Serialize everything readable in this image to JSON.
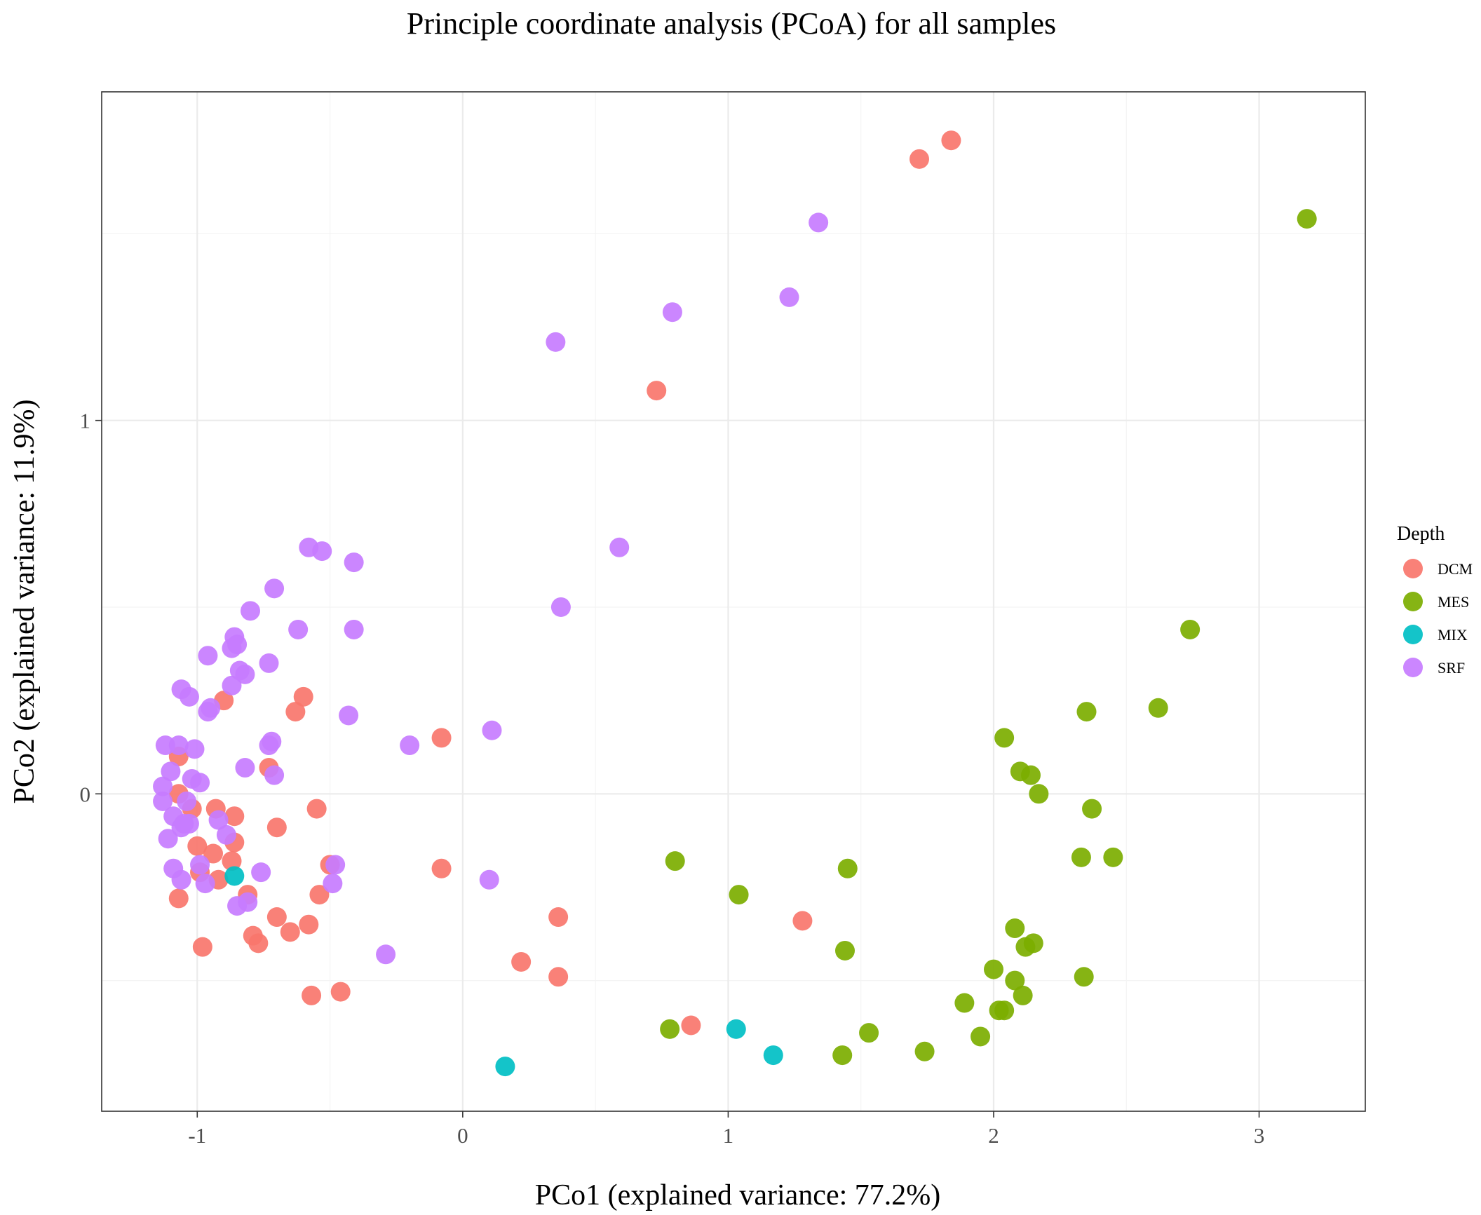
{
  "chart_data": {
    "type": "scatter",
    "title": "Principle coordinate analysis (PCoA) for all samples",
    "xlabel": "PCo1 (explained variance: 77.2%)",
    "ylabel": "PCo2 (explained variance: 11.9%)",
    "xlim": [
      -1.36,
      3.4
    ],
    "ylim": [
      -0.85,
      1.88
    ],
    "x_ticks": [
      -1,
      0,
      1,
      2,
      3
    ],
    "x_tick_labels": [
      "-1",
      "0",
      "1",
      "2",
      "3"
    ],
    "y_ticks": [
      0,
      1
    ],
    "y_tick_labels": [
      "0",
      "1"
    ],
    "grid": true,
    "legend": {
      "title": "Depth",
      "position": "right"
    },
    "series": [
      {
        "name": "DCM",
        "color": "#F8766D",
        "points": [
          [
            1.84,
            1.75
          ],
          [
            1.72,
            1.7
          ],
          [
            0.73,
            1.08
          ],
          [
            -0.08,
            0.15
          ],
          [
            -0.6,
            0.26
          ],
          [
            -0.63,
            0.22
          ],
          [
            -0.9,
            0.25
          ],
          [
            -0.73,
            0.07
          ],
          [
            -1.07,
            0.1
          ],
          [
            -1.07,
            0.0
          ],
          [
            -1.02,
            -0.04
          ],
          [
            -0.93,
            -0.04
          ],
          [
            -0.86,
            -0.06
          ],
          [
            -0.55,
            -0.04
          ],
          [
            -0.7,
            -0.09
          ],
          [
            -0.86,
            -0.13
          ],
          [
            -1.0,
            -0.14
          ],
          [
            -0.94,
            -0.16
          ],
          [
            -0.87,
            -0.18
          ],
          [
            -0.5,
            -0.19
          ],
          [
            -0.99,
            -0.21
          ],
          [
            -0.92,
            -0.23
          ],
          [
            -0.81,
            -0.27
          ],
          [
            -0.54,
            -0.27
          ],
          [
            -1.07,
            -0.28
          ],
          [
            -0.7,
            -0.33
          ],
          [
            -0.58,
            -0.35
          ],
          [
            -0.65,
            -0.37
          ],
          [
            -0.79,
            -0.38
          ],
          [
            -0.77,
            -0.4
          ],
          [
            -0.98,
            -0.41
          ],
          [
            -0.08,
            -0.2
          ],
          [
            0.36,
            -0.33
          ],
          [
            0.22,
            -0.45
          ],
          [
            0.36,
            -0.49
          ],
          [
            -0.57,
            -0.54
          ],
          [
            -0.46,
            -0.53
          ],
          [
            0.86,
            -0.62
          ],
          [
            1.28,
            -0.34
          ]
        ]
      },
      {
        "name": "MES",
        "color": "#7CAE00",
        "points": [
          [
            3.18,
            1.54
          ],
          [
            2.74,
            0.44
          ],
          [
            2.62,
            0.23
          ],
          [
            2.35,
            0.22
          ],
          [
            2.04,
            0.15
          ],
          [
            2.1,
            0.06
          ],
          [
            2.14,
            0.05
          ],
          [
            2.17,
            0.0
          ],
          [
            2.37,
            -0.04
          ],
          [
            2.33,
            -0.17
          ],
          [
            2.45,
            -0.17
          ],
          [
            0.8,
            -0.18
          ],
          [
            1.45,
            -0.2
          ],
          [
            1.04,
            -0.27
          ],
          [
            1.44,
            -0.42
          ],
          [
            2.08,
            -0.36
          ],
          [
            2.12,
            -0.41
          ],
          [
            2.15,
            -0.4
          ],
          [
            2.0,
            -0.47
          ],
          [
            2.08,
            -0.5
          ],
          [
            2.11,
            -0.54
          ],
          [
            2.34,
            -0.49
          ],
          [
            1.89,
            -0.56
          ],
          [
            2.02,
            -0.58
          ],
          [
            2.04,
            -0.58
          ],
          [
            1.95,
            -0.65
          ],
          [
            1.53,
            -0.64
          ],
          [
            1.74,
            -0.69
          ],
          [
            1.43,
            -0.7
          ],
          [
            0.78,
            -0.63
          ]
        ]
      },
      {
        "name": "MIX",
        "color": "#00BFC4",
        "points": [
          [
            -0.86,
            -0.22
          ],
          [
            1.03,
            -0.63
          ],
          [
            1.17,
            -0.7
          ],
          [
            0.16,
            -0.73
          ]
        ]
      },
      {
        "name": "SRF",
        "color": "#C77CFF",
        "points": [
          [
            1.34,
            1.53
          ],
          [
            1.23,
            1.33
          ],
          [
            0.79,
            1.29
          ],
          [
            0.35,
            1.21
          ],
          [
            0.59,
            0.66
          ],
          [
            0.37,
            0.5
          ],
          [
            0.11,
            0.17
          ],
          [
            -0.2,
            0.13
          ],
          [
            -0.58,
            0.66
          ],
          [
            -0.53,
            0.65
          ],
          [
            -0.41,
            0.62
          ],
          [
            -0.71,
            0.55
          ],
          [
            -0.8,
            0.49
          ],
          [
            -0.62,
            0.44
          ],
          [
            -0.41,
            0.44
          ],
          [
            -0.86,
            0.42
          ],
          [
            -0.85,
            0.4
          ],
          [
            -0.87,
            0.39
          ],
          [
            -0.96,
            0.37
          ],
          [
            -0.73,
            0.35
          ],
          [
            -0.84,
            0.33
          ],
          [
            -0.82,
            0.32
          ],
          [
            -1.06,
            0.28
          ],
          [
            -0.87,
            0.29
          ],
          [
            -1.03,
            0.26
          ],
          [
            -0.95,
            0.23
          ],
          [
            -0.96,
            0.22
          ],
          [
            -0.43,
            0.21
          ],
          [
            -0.72,
            0.14
          ],
          [
            -0.73,
            0.13
          ],
          [
            -1.12,
            0.13
          ],
          [
            -1.07,
            0.13
          ],
          [
            -1.01,
            0.12
          ],
          [
            -0.82,
            0.07
          ],
          [
            -1.1,
            0.06
          ],
          [
            -0.71,
            0.05
          ],
          [
            -1.02,
            0.04
          ],
          [
            -0.99,
            0.03
          ],
          [
            -1.13,
            0.02
          ],
          [
            -1.13,
            -0.02
          ],
          [
            -1.04,
            -0.02
          ],
          [
            -1.09,
            -0.06
          ],
          [
            -1.05,
            -0.08
          ],
          [
            -1.06,
            -0.09
          ],
          [
            -1.03,
            -0.08
          ],
          [
            -0.92,
            -0.07
          ],
          [
            -1.11,
            -0.12
          ],
          [
            -0.89,
            -0.11
          ],
          [
            -1.09,
            -0.2
          ],
          [
            -0.99,
            -0.19
          ],
          [
            -0.76,
            -0.21
          ],
          [
            -0.48,
            -0.19
          ],
          [
            -1.06,
            -0.23
          ],
          [
            -0.97,
            -0.24
          ],
          [
            -0.49,
            -0.24
          ],
          [
            -0.81,
            -0.29
          ],
          [
            -0.85,
            -0.3
          ],
          [
            0.1,
            -0.23
          ],
          [
            -0.29,
            -0.43
          ]
        ]
      }
    ]
  }
}
